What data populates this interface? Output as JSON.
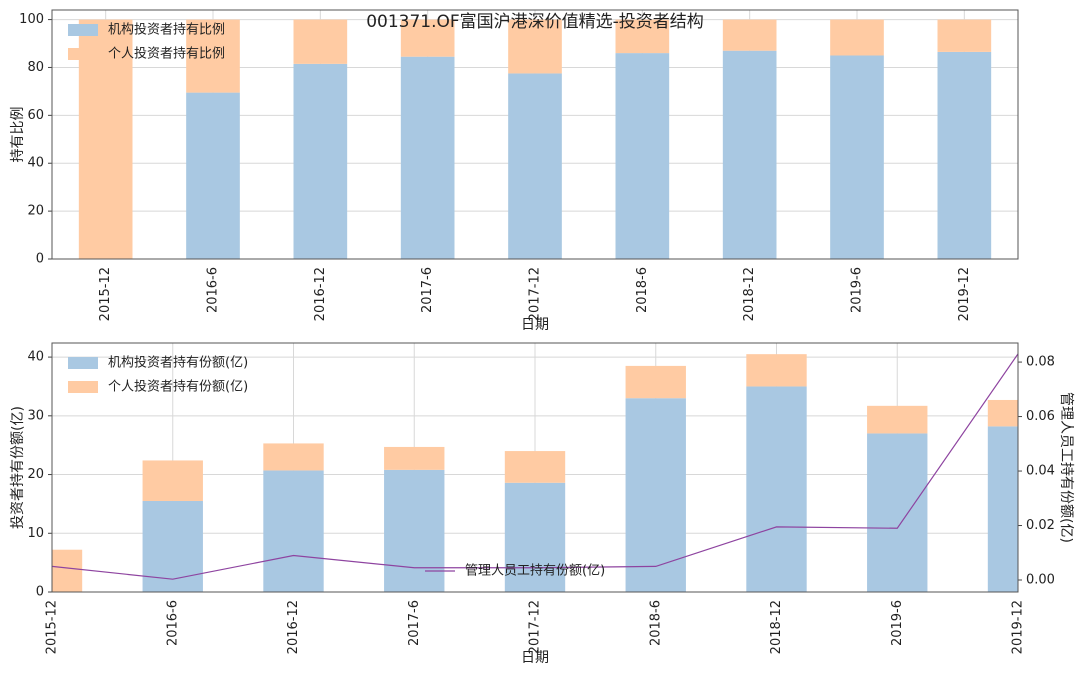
{
  "chart_data": [
    {
      "type": "bar",
      "stacked": true,
      "title": "001371.OF富国沪港深价值精选-投资者结构",
      "xlabel": "日期",
      "ylabel": "持有比例",
      "categories": [
        "2015-12",
        "2016-6",
        "2016-12",
        "2017-6",
        "2017-12",
        "2018-6",
        "2018-12",
        "2019-6",
        "2019-12"
      ],
      "series": [
        {
          "name": "机构投资者持有比例",
          "color": "#a9c8e2",
          "values": [
            0,
            69.5,
            81.5,
            84.5,
            77.5,
            86,
            87,
            85,
            86.5
          ]
        },
        {
          "name": "个人投资者持有比例",
          "color": "#ffcba3",
          "values": [
            100,
            30.5,
            18.5,
            15.5,
            22.5,
            14,
            13,
            15,
            13.5
          ]
        }
      ],
      "ylim": [
        0,
        104
      ],
      "yticks": [
        0,
        20,
        40,
        60,
        80,
        100
      ],
      "grid": true,
      "legend": "upper left"
    },
    {
      "type": "bar",
      "stacked": true,
      "xlabel": "日期",
      "ylabel": "投资者持有份额(亿)",
      "y2label": "管理人员工持有份额(亿)",
      "categories": [
        "2015-12",
        "2016-6",
        "2016-12",
        "2017-6",
        "2017-12",
        "2018-6",
        "2018-12",
        "2019-6",
        "2019-12"
      ],
      "series": [
        {
          "name": "机构投资者持有份额(亿)",
          "color": "#a9c8e2",
          "values": [
            0,
            15.5,
            20.7,
            20.8,
            18.6,
            33,
            35,
            27,
            28.2
          ]
        },
        {
          "name": "个人投资者持有份额(亿)",
          "color": "#ffcba3",
          "values": [
            7.2,
            6.9,
            4.6,
            3.9,
            5.4,
            5.5,
            5.5,
            4.7,
            4.5
          ]
        },
        {
          "name": "管理人员工持有份额(亿)",
          "color": "#8e44a0",
          "axis": "y2",
          "type": "line",
          "values": [
            0.005,
            0.0003,
            0.009,
            0.0045,
            0.0045,
            0.005,
            0.0195,
            0.019,
            0.083
          ]
        }
      ],
      "ylim": [
        0,
        42.4
      ],
      "yticks": [
        0,
        10,
        20,
        30,
        40
      ],
      "y2lim": [
        -0.0044,
        0.087
      ],
      "y2ticks": [
        {
          "value": 0,
          "label": "0.00"
        },
        {
          "value": 0.02,
          "label": "0.02"
        },
        {
          "value": 0.04,
          "label": "0.04"
        },
        {
          "value": 0.06,
          "label": "0.06"
        },
        {
          "value": 0.08,
          "label": "0.08"
        }
      ],
      "grid": true,
      "legend": "upper left",
      "legend2": "lower center"
    }
  ]
}
